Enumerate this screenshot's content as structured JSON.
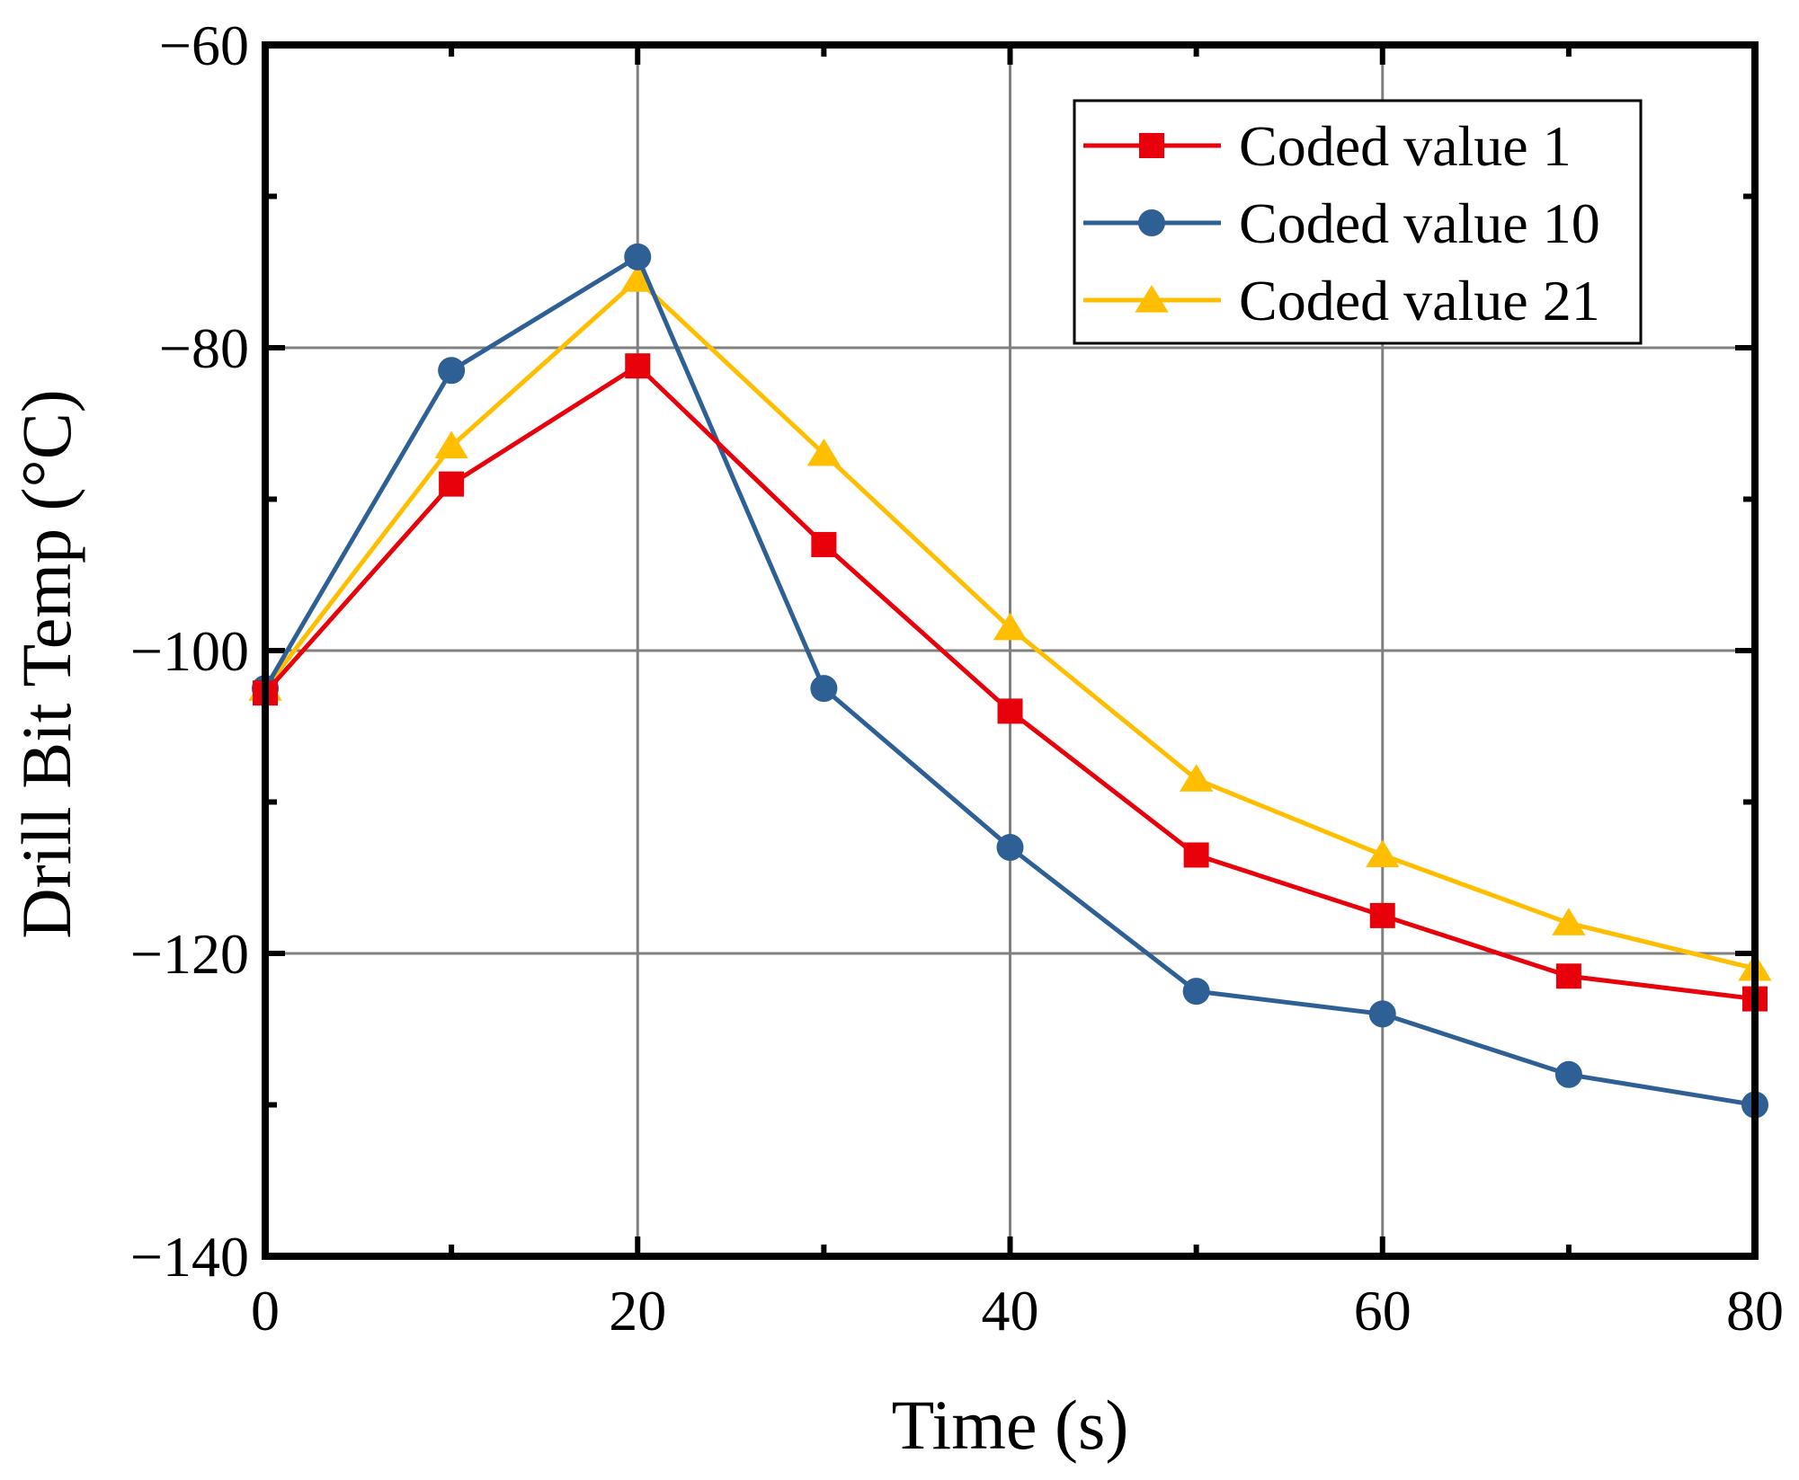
{
  "chart_data": {
    "type": "line",
    "title": "",
    "xlabel": "Time (s)",
    "ylabel": "Drill Bit Temp (°C)",
    "xlim": [
      0,
      80
    ],
    "ylim": [
      -140,
      -60
    ],
    "x_ticks": [
      0,
      20,
      40,
      60,
      80
    ],
    "y_ticks": [
      -140,
      -120,
      -100,
      -80,
      -60
    ],
    "x_tick_labels": [
      "0",
      "20",
      "40",
      "60",
      "80"
    ],
    "y_tick_labels": [
      "−140",
      "−120",
      "−100",
      "−80",
      "−60"
    ],
    "grid": true,
    "legend_position": "top-right",
    "x": [
      0,
      10,
      20,
      30,
      40,
      50,
      60,
      70,
      80
    ],
    "series": [
      {
        "name": "Coded value 1",
        "color": "#e8000b",
        "marker": "square",
        "values": [
          -102.8,
          -89.0,
          -81.2,
          -93.0,
          -104.0,
          -113.5,
          -117.5,
          -121.5,
          -123.0
        ]
      },
      {
        "name": "Coded value 10",
        "color": "#2e5f95",
        "marker": "circle",
        "values": [
          -102.5,
          -81.5,
          -74.0,
          -102.5,
          -113.0,
          -122.5,
          -124.0,
          -128.0,
          -130.0
        ]
      },
      {
        "name": "Coded value 21",
        "color": "#ffbf00",
        "marker": "triangle",
        "values": [
          -102.5,
          -86.5,
          -75.5,
          -87.0,
          -98.5,
          -108.5,
          -113.5,
          -118.0,
          -121.0
        ]
      }
    ]
  }
}
